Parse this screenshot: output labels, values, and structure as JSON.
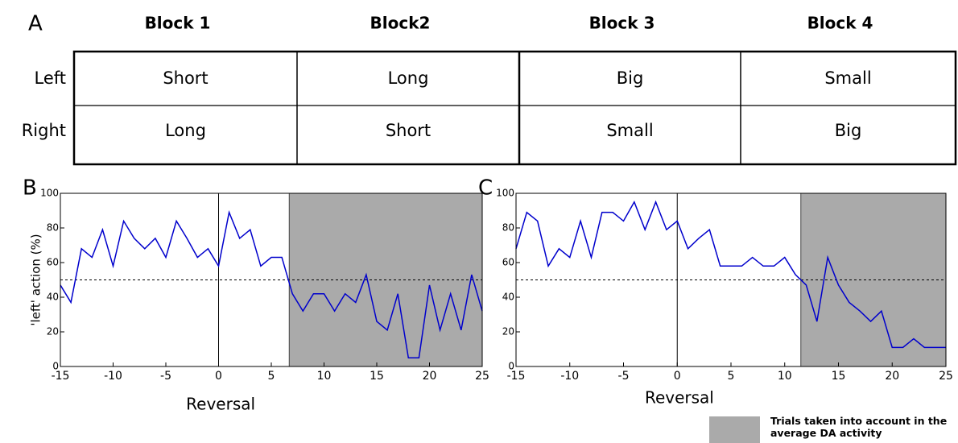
{
  "table": {
    "panel": "A",
    "columns": [
      "Block 1",
      "Block2",
      "Block 3",
      "Block 4"
    ],
    "rows": [
      {
        "label": "Left",
        "cells": [
          "Short",
          "Long",
          "Big",
          "Small"
        ]
      },
      {
        "label": "Right",
        "cells": [
          "Long",
          "Short",
          "Small",
          "Big"
        ]
      }
    ]
  },
  "chart_data": [
    {
      "type": "line",
      "panel": "B",
      "xlabel": "Reversal",
      "ylabel": "'left' action (%)",
      "x": [
        -15,
        -14,
        -13,
        -12,
        -11,
        -10,
        -9,
        -8,
        -7,
        -6,
        -5,
        -4,
        -3,
        -2,
        -1,
        0,
        1,
        2,
        3,
        4,
        5,
        6,
        7,
        8,
        9,
        10,
        11,
        12,
        13,
        14,
        15,
        16,
        17,
        18,
        19,
        20,
        21,
        22,
        23,
        24,
        25
      ],
      "series": [
        {
          "color": "#0000cc",
          "values": [
            47,
            37,
            68,
            63,
            79,
            58,
            84,
            74,
            68,
            74,
            63,
            84,
            74,
            63,
            68,
            58,
            89,
            74,
            79,
            58,
            63,
            63,
            42,
            32,
            42,
            42,
            32,
            42,
            37,
            53,
            26,
            21,
            42,
            5,
            5,
            47,
            21,
            42,
            21,
            53,
            32
          ]
        }
      ],
      "xlim": [
        -15,
        25
      ],
      "ylim": [
        0,
        100
      ],
      "xticks": [
        -15,
        -10,
        -5,
        0,
        5,
        10,
        15,
        20,
        25
      ],
      "yticks": [
        0,
        20,
        40,
        60,
        80,
        100
      ],
      "vline": 0,
      "hline": 50,
      "shaded_range": [
        6.7,
        25
      ],
      "shade_color": "#aaaaaa"
    },
    {
      "type": "line",
      "panel": "C",
      "xlabel": "Reversal",
      "x": [
        -15,
        -14,
        -13,
        -12,
        -11,
        -10,
        -9,
        -8,
        -7,
        -6,
        -5,
        -4,
        -3,
        -2,
        -1,
        0,
        1,
        2,
        3,
        4,
        5,
        6,
        7,
        8,
        9,
        10,
        11,
        12,
        13,
        14,
        15,
        16,
        17,
        18,
        19,
        20,
        21,
        22,
        23,
        24,
        25
      ],
      "series": [
        {
          "color": "#0000cc",
          "values": [
            68,
            89,
            84,
            58,
            68,
            63,
            84,
            63,
            89,
            89,
            84,
            95,
            79,
            95,
            79,
            84,
            68,
            74,
            79,
            58,
            58,
            58,
            63,
            58,
            58,
            63,
            53,
            47,
            26,
            63,
            47,
            37,
            32,
            26,
            32,
            11,
            11,
            16,
            11,
            11,
            11
          ]
        }
      ],
      "xlim": [
        -15,
        25
      ],
      "ylim": [
        0,
        100
      ],
      "xticks": [
        -15,
        -10,
        -5,
        0,
        5,
        10,
        15,
        20,
        25
      ],
      "yticks": [
        0,
        20,
        40,
        60,
        80,
        100
      ],
      "vline": 0,
      "hline": 50,
      "shaded_range": [
        11.5,
        25
      ],
      "shade_color": "#aaaaaa"
    }
  ],
  "legend": {
    "text": "Trials taken into account in the average DA activity",
    "color": "#aaaaaa"
  }
}
